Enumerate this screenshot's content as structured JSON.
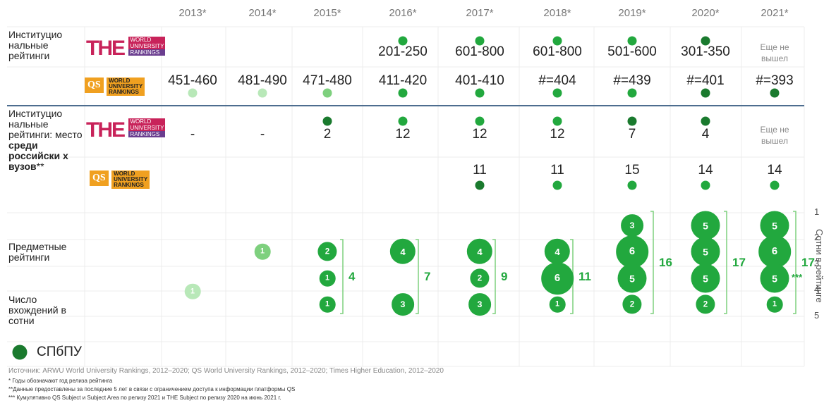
{
  "years": [
    "2013*",
    "2014*",
    "2015*",
    "2016*",
    "2017*",
    "2018*",
    "2019*",
    "2020*",
    "2021*"
  ],
  "colors": {
    "dark": "#1a7a2e",
    "mid": "#22a83e",
    "light": "#7ed07e",
    "pale": "#b8e8b8",
    "line": "#4d6d8f"
  },
  "labels": {
    "institutional": "Институцио нальные рейтинги",
    "institutional_place_1": "Институцио нальные рейтинги: место",
    "institutional_place_2": "среди российски х вузов",
    "institutional_place_stars": "**",
    "subject": "Предметные рейтинги",
    "entries": "Число вхождений в сотни",
    "legend": "СПбПУ"
  },
  "logos": {
    "the_text": "THE",
    "the_lines": [
      "WORLD",
      "UNIVERSITY",
      "RANKINGS"
    ],
    "qs_text": "QS",
    "qs_lines": [
      "WORLD",
      "UNIVERSITY",
      "RANKINGS"
    ]
  },
  "the_world": {
    "values": [
      "",
      "",
      "",
      "201-250",
      "601-800",
      "601-800",
      "501-600",
      "301-350",
      "Еще не вышел"
    ],
    "dots": [
      "",
      "",
      "",
      "mid",
      "mid",
      "mid",
      "mid",
      "dark",
      ""
    ]
  },
  "qs_world": {
    "values": [
      "451-460",
      "481-490",
      "471-480",
      "411-420",
      "401-410",
      "#=404",
      "#=439",
      "#=401",
      "#=393"
    ],
    "dots": [
      "pale",
      "pale",
      "light",
      "mid",
      "mid",
      "mid",
      "mid",
      "dark",
      "dark"
    ]
  },
  "the_russia": {
    "values": [
      "-",
      "-",
      "2",
      "12",
      "12",
      "12",
      "7",
      "4",
      "Еще не вышел"
    ],
    "dots": [
      "",
      "",
      "dark",
      "mid",
      "mid",
      "mid",
      "dark",
      "dark",
      ""
    ]
  },
  "qs_russia": {
    "values": [
      "",
      "",
      "",
      "",
      "11",
      "11",
      "15",
      "14",
      "14"
    ],
    "dots": [
      "",
      "",
      "",
      "",
      "dark",
      "mid",
      "mid",
      "mid",
      "mid"
    ]
  },
  "chart_data": {
    "type": "scatter",
    "title": "Предметные рейтинги",
    "ylabel": "Сотни в рейтинге",
    "y_ticks": [
      "1",
      "2",
      "3",
      "4",
      "5"
    ],
    "x": [
      "2013*",
      "2014*",
      "2015*",
      "2016*",
      "2017*",
      "2018*",
      "2019*",
      "2020*",
      "2021*"
    ],
    "bubbles": [
      {
        "year": "2013*",
        "hundred": 3.5,
        "count": 1
      },
      {
        "year": "2014*",
        "hundred": 2,
        "count": 1
      },
      {
        "year": "2015*",
        "hundred": 2,
        "count": 2
      },
      {
        "year": "2015*",
        "hundred": 3,
        "count": 1
      },
      {
        "year": "2015*",
        "hundred": 4,
        "count": 1
      },
      {
        "year": "2016*",
        "hundred": 2,
        "count": 4
      },
      {
        "year": "2016*",
        "hundred": 4,
        "count": 3
      },
      {
        "year": "2017*",
        "hundred": 2,
        "count": 4
      },
      {
        "year": "2017*",
        "hundred": 3,
        "count": 2
      },
      {
        "year": "2017*",
        "hundred": 4,
        "count": 3
      },
      {
        "year": "2018*",
        "hundred": 2,
        "count": 4
      },
      {
        "year": "2018*",
        "hundred": 3,
        "count": 6
      },
      {
        "year": "2018*",
        "hundred": 4,
        "count": 1
      },
      {
        "year": "2019*",
        "hundred": 1,
        "count": 3
      },
      {
        "year": "2019*",
        "hundred": 2,
        "count": 6
      },
      {
        "year": "2019*",
        "hundred": 3,
        "count": 5
      },
      {
        "year": "2019*",
        "hundred": 4,
        "count": 2
      },
      {
        "year": "2020*",
        "hundred": 1,
        "count": 5
      },
      {
        "year": "2020*",
        "hundred": 2,
        "count": 5
      },
      {
        "year": "2020*",
        "hundred": 3,
        "count": 5
      },
      {
        "year": "2020*",
        "hundred": 4,
        "count": 2
      },
      {
        "year": "2021*",
        "hundred": 1,
        "count": 5
      },
      {
        "year": "2021*",
        "hundred": 2,
        "count": 6
      },
      {
        "year": "2021*",
        "hundred": 3,
        "count": 5
      },
      {
        "year": "2021*",
        "hundred": 4,
        "count": 1
      }
    ],
    "totals": [
      {
        "year": "2015*",
        "total": "4"
      },
      {
        "year": "2016*",
        "total": "7"
      },
      {
        "year": "2017*",
        "total": "9"
      },
      {
        "year": "2018*",
        "total": "11"
      },
      {
        "year": "2019*",
        "total": "16"
      },
      {
        "year": "2020*",
        "total": "17"
      },
      {
        "year": "2021*",
        "total": "17"
      }
    ],
    "total_note": "***"
  },
  "footnotes": [
    "Источник: ARWU World University Rankings, 2012–2020; QS World University Rankings, 2012–2020; Times Higher Education, 2012–2020",
    "* Годы обозначают год релиза рейтинга",
    "**Данные предоставлены за последние 5 лет в связи  с ограничением доступа к информации платформы QS",
    "*** Кумулятивно QS Subject и Subject Area по релизу 2021 и THE Subject по релизу 2020 на июнь 2021 г."
  ]
}
